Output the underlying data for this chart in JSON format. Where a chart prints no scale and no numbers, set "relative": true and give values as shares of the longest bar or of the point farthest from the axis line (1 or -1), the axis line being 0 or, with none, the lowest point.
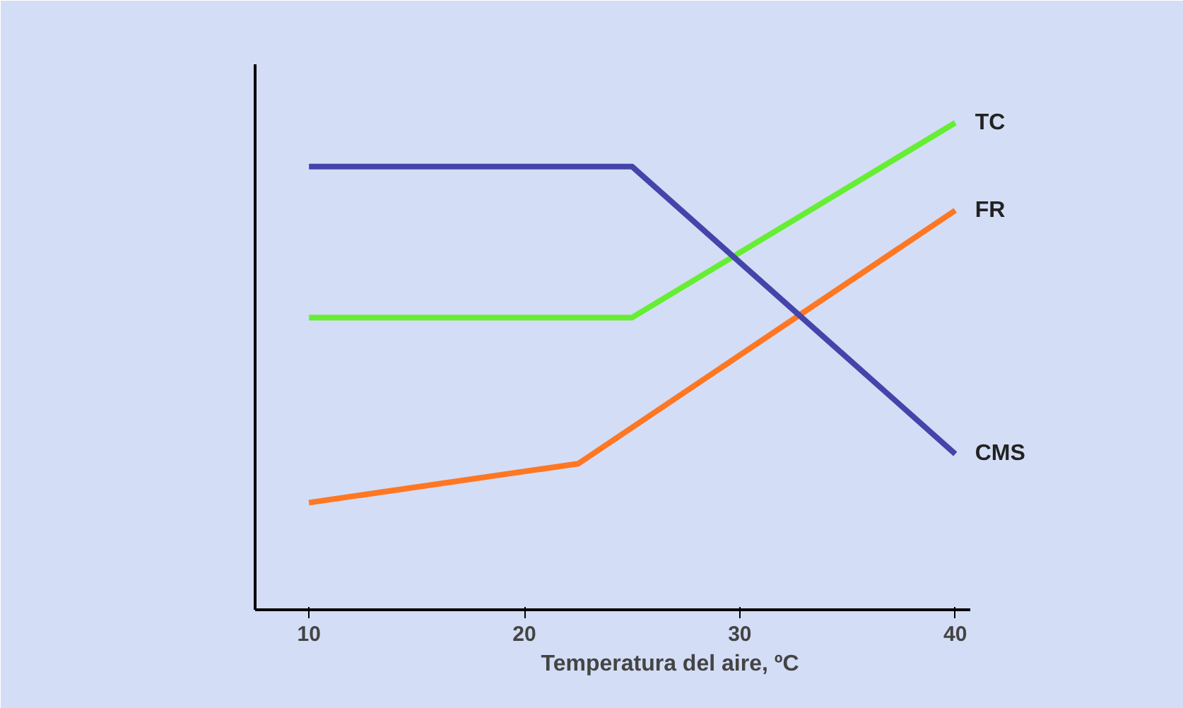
{
  "chart_data": {
    "type": "line",
    "relative": true,
    "xlabel": "Temperatura del aire, ºC",
    "xlim": [
      7.5,
      40.7
    ],
    "xticks": [
      10,
      20,
      30,
      40
    ],
    "grid": false,
    "legend": false,
    "marker": "none",
    "line_style": "solid",
    "series": [
      {
        "name": "TC",
        "color": "#66ee33",
        "x": [
          10,
          25,
          40
        ],
        "values": [
          0.6,
          0.6,
          1
        ]
      },
      {
        "name": "FR",
        "color": "#ff7722",
        "x": [
          10,
          22.5,
          40
        ],
        "values": [
          0.22,
          0.3,
          0.82
        ]
      },
      {
        "name": "CMS",
        "color": "#4444aa",
        "x": [
          10,
          25,
          40
        ],
        "values": [
          0.91,
          0.91,
          0.32
        ]
      }
    ]
  }
}
